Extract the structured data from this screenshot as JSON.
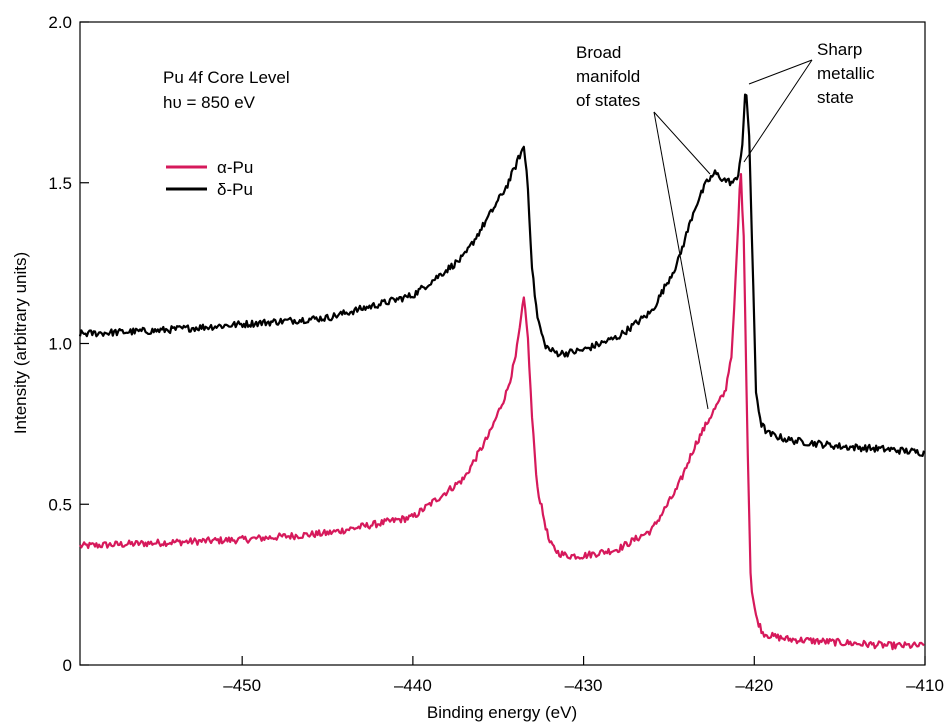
{
  "chart_data": {
    "type": "line",
    "title": "",
    "xlabel": "Binding energy (eV)",
    "ylabel": "Intensity (arbitrary units)",
    "xlim": [
      -459.5,
      -410
    ],
    "ylim": [
      0,
      2.0
    ],
    "x_ticks": [
      -450,
      -440,
      -430,
      -420,
      -410
    ],
    "x_tick_labels": [
      "–450",
      "–440",
      "–430",
      "–420",
      "–410"
    ],
    "y_ticks": [
      0,
      0.5,
      1.0,
      1.5,
      2.0
    ],
    "y_tick_labels": [
      "0",
      "0.5",
      "1.0",
      "1.5",
      "2.0"
    ],
    "grid": false,
    "legend_position": "upper-left",
    "header_text": [
      "Pu 4f Core Level",
      "hυ = 850 eV"
    ],
    "annotations": {
      "broad": [
        "Broad",
        "manifold",
        "of states"
      ],
      "sharp": [
        "Sharp",
        "metallic",
        "state"
      ]
    },
    "series": [
      {
        "name": "α-Pu",
        "color": "#d6195b",
        "x": [
          -459.5,
          -455,
          -450,
          -445,
          -440,
          -437,
          -435.5,
          -434.5,
          -434,
          -433.7,
          -433.5,
          -433.3,
          -433,
          -432.7,
          -432.3,
          -432,
          -431.5,
          -431,
          -430,
          -428,
          -426,
          -424.5,
          -423.5,
          -422.5,
          -421.7,
          -421.3,
          -421,
          -420.8,
          -420.6,
          -420.4,
          -420.2,
          -419.9,
          -419.5,
          -419,
          -418,
          -415,
          -412,
          -410
        ],
        "y": [
          0.37,
          0.38,
          0.39,
          0.41,
          0.46,
          0.58,
          0.72,
          0.85,
          0.95,
          1.06,
          1.14,
          1.05,
          0.75,
          0.55,
          0.45,
          0.38,
          0.35,
          0.34,
          0.34,
          0.36,
          0.42,
          0.55,
          0.68,
          0.78,
          0.85,
          0.98,
          1.3,
          1.55,
          1.3,
          0.7,
          0.25,
          0.15,
          0.1,
          0.09,
          0.08,
          0.07,
          0.06,
          0.06
        ]
      },
      {
        "name": "δ-Pu",
        "color": "#000000",
        "x": [
          -459.5,
          -455,
          -450,
          -445,
          -440,
          -437,
          -435.5,
          -434.5,
          -434,
          -433.7,
          -433.5,
          -433.3,
          -433,
          -432.7,
          -432.3,
          -432,
          -431.5,
          -431,
          -430,
          -428,
          -426,
          -424.5,
          -423.5,
          -422.8,
          -422.3,
          -421.8,
          -421.3,
          -421,
          -420.7,
          -420.5,
          -420.3,
          -420.1,
          -419.9,
          -419.6,
          -419.2,
          -418,
          -415,
          -412,
          -410
        ],
        "y": [
          1.03,
          1.04,
          1.06,
          1.08,
          1.15,
          1.27,
          1.4,
          1.49,
          1.55,
          1.59,
          1.61,
          1.52,
          1.22,
          1.08,
          1.0,
          0.98,
          0.97,
          0.97,
          0.98,
          1.02,
          1.1,
          1.25,
          1.42,
          1.5,
          1.53,
          1.51,
          1.5,
          1.51,
          1.62,
          1.8,
          1.65,
          1.25,
          0.85,
          0.75,
          0.72,
          0.7,
          0.68,
          0.67,
          0.66
        ]
      }
    ]
  }
}
